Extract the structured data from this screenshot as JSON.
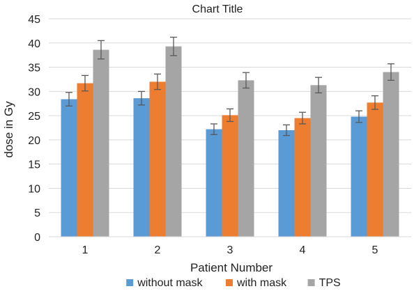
{
  "chart_data": {
    "type": "bar",
    "title": "Chart Title",
    "xlabel": "Patient Number",
    "ylabel": "dose in Gy",
    "categories": [
      "1",
      "2",
      "3",
      "4",
      "5"
    ],
    "ylim": [
      0,
      45
    ],
    "yticks": [
      0,
      5,
      10,
      15,
      20,
      25,
      30,
      35,
      40,
      45
    ],
    "grid": "horizontal",
    "legend_position": "bottom",
    "series": [
      {
        "name": "without mask",
        "color": "#5b9bd5",
        "values": [
          28.4,
          28.6,
          22.2,
          22.0,
          24.8
        ],
        "errors": [
          1.4,
          1.4,
          1.1,
          1.1,
          1.2
        ]
      },
      {
        "name": "with mask",
        "color": "#ed7d31",
        "values": [
          31.7,
          32.0,
          25.1,
          24.5,
          27.7
        ],
        "errors": [
          1.6,
          1.6,
          1.3,
          1.2,
          1.4
        ]
      },
      {
        "name": "TPS",
        "color": "#a5a5a5",
        "values": [
          38.6,
          39.3,
          32.3,
          31.3,
          34.0
        ],
        "errors": [
          1.9,
          1.9,
          1.6,
          1.6,
          1.7
        ]
      }
    ],
    "error_bar_color": "#595959",
    "gridline_color": "#d9d9d9"
  }
}
